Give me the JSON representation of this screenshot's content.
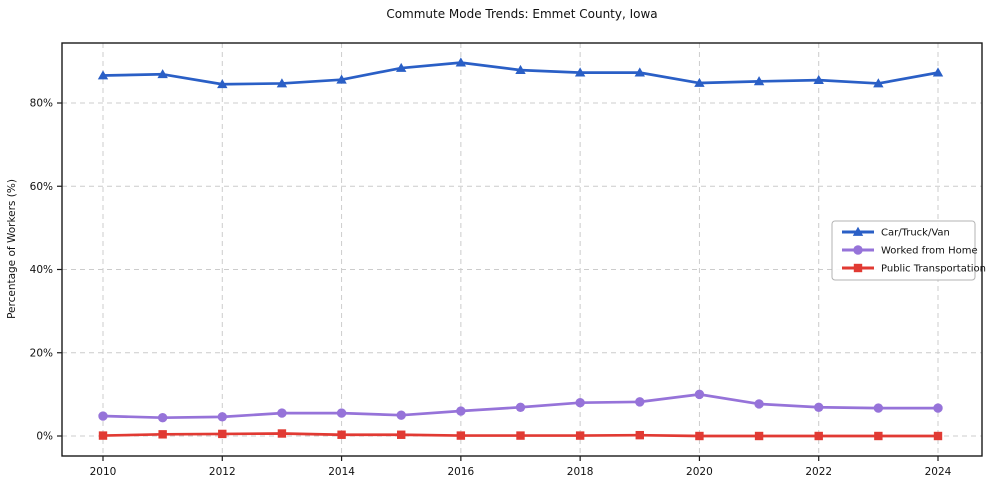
{
  "chart_data": {
    "type": "line",
    "title": "Commute Mode Trends: Emmet County, Iowa",
    "xlabel": "",
    "ylabel": "Percentage of Workers (%)",
    "x": [
      2010,
      2011,
      2012,
      2013,
      2014,
      2015,
      2016,
      2017,
      2018,
      2019,
      2020,
      2021,
      2022,
      2023,
      2024
    ],
    "x_ticks": [
      {
        "value": 2010,
        "label": "2010"
      },
      {
        "value": 2012,
        "label": "2012"
      },
      {
        "value": 2014,
        "label": "2014"
      },
      {
        "value": 2016,
        "label": "2016"
      },
      {
        "value": 2018,
        "label": "2018"
      },
      {
        "value": 2020,
        "label": "2020"
      },
      {
        "value": 2022,
        "label": "2022"
      },
      {
        "value": 2024,
        "label": "2024"
      }
    ],
    "y_ticks": [
      {
        "value": 0,
        "label": "0%"
      },
      {
        "value": 20,
        "label": "20%"
      },
      {
        "value": 40,
        "label": "40%"
      },
      {
        "value": 60,
        "label": "60%"
      },
      {
        "value": 80,
        "label": "80%"
      }
    ],
    "ylim": [
      -4.8,
      94.4
    ],
    "xlim": [
      2009.3,
      2024.75
    ],
    "grid": true,
    "grid_style": "dashed",
    "legend_position": "center-right",
    "series": [
      {
        "name": "Car/Truck/Van",
        "color": "#2a5fc6",
        "marker": "triangle",
        "values": [
          86.6,
          86.9,
          84.5,
          84.7,
          85.6,
          88.4,
          89.7,
          87.9,
          87.3,
          87.3,
          84.8,
          85.2,
          85.5,
          84.7,
          87.3
        ]
      },
      {
        "name": "Worked from Home",
        "color": "#9673d9",
        "marker": "circle",
        "values": [
          4.8,
          4.4,
          4.6,
          5.5,
          5.5,
          5.0,
          6.0,
          6.9,
          8.0,
          8.2,
          10.0,
          7.7,
          6.9,
          6.7,
          6.7
        ]
      },
      {
        "name": "Public Transportation",
        "color": "#e13a33",
        "marker": "square",
        "values": [
          0.1,
          0.4,
          0.5,
          0.6,
          0.3,
          0.3,
          0.1,
          0.1,
          0.1,
          0.2,
          0.0,
          0.0,
          0.0,
          0.0,
          0.0
        ]
      }
    ],
    "colors": {
      "grid": "#cccccc",
      "spine": "#1a1a1a",
      "text": "#111111",
      "legend_border": "#b3b3b3",
      "background": "#ffffff"
    }
  }
}
